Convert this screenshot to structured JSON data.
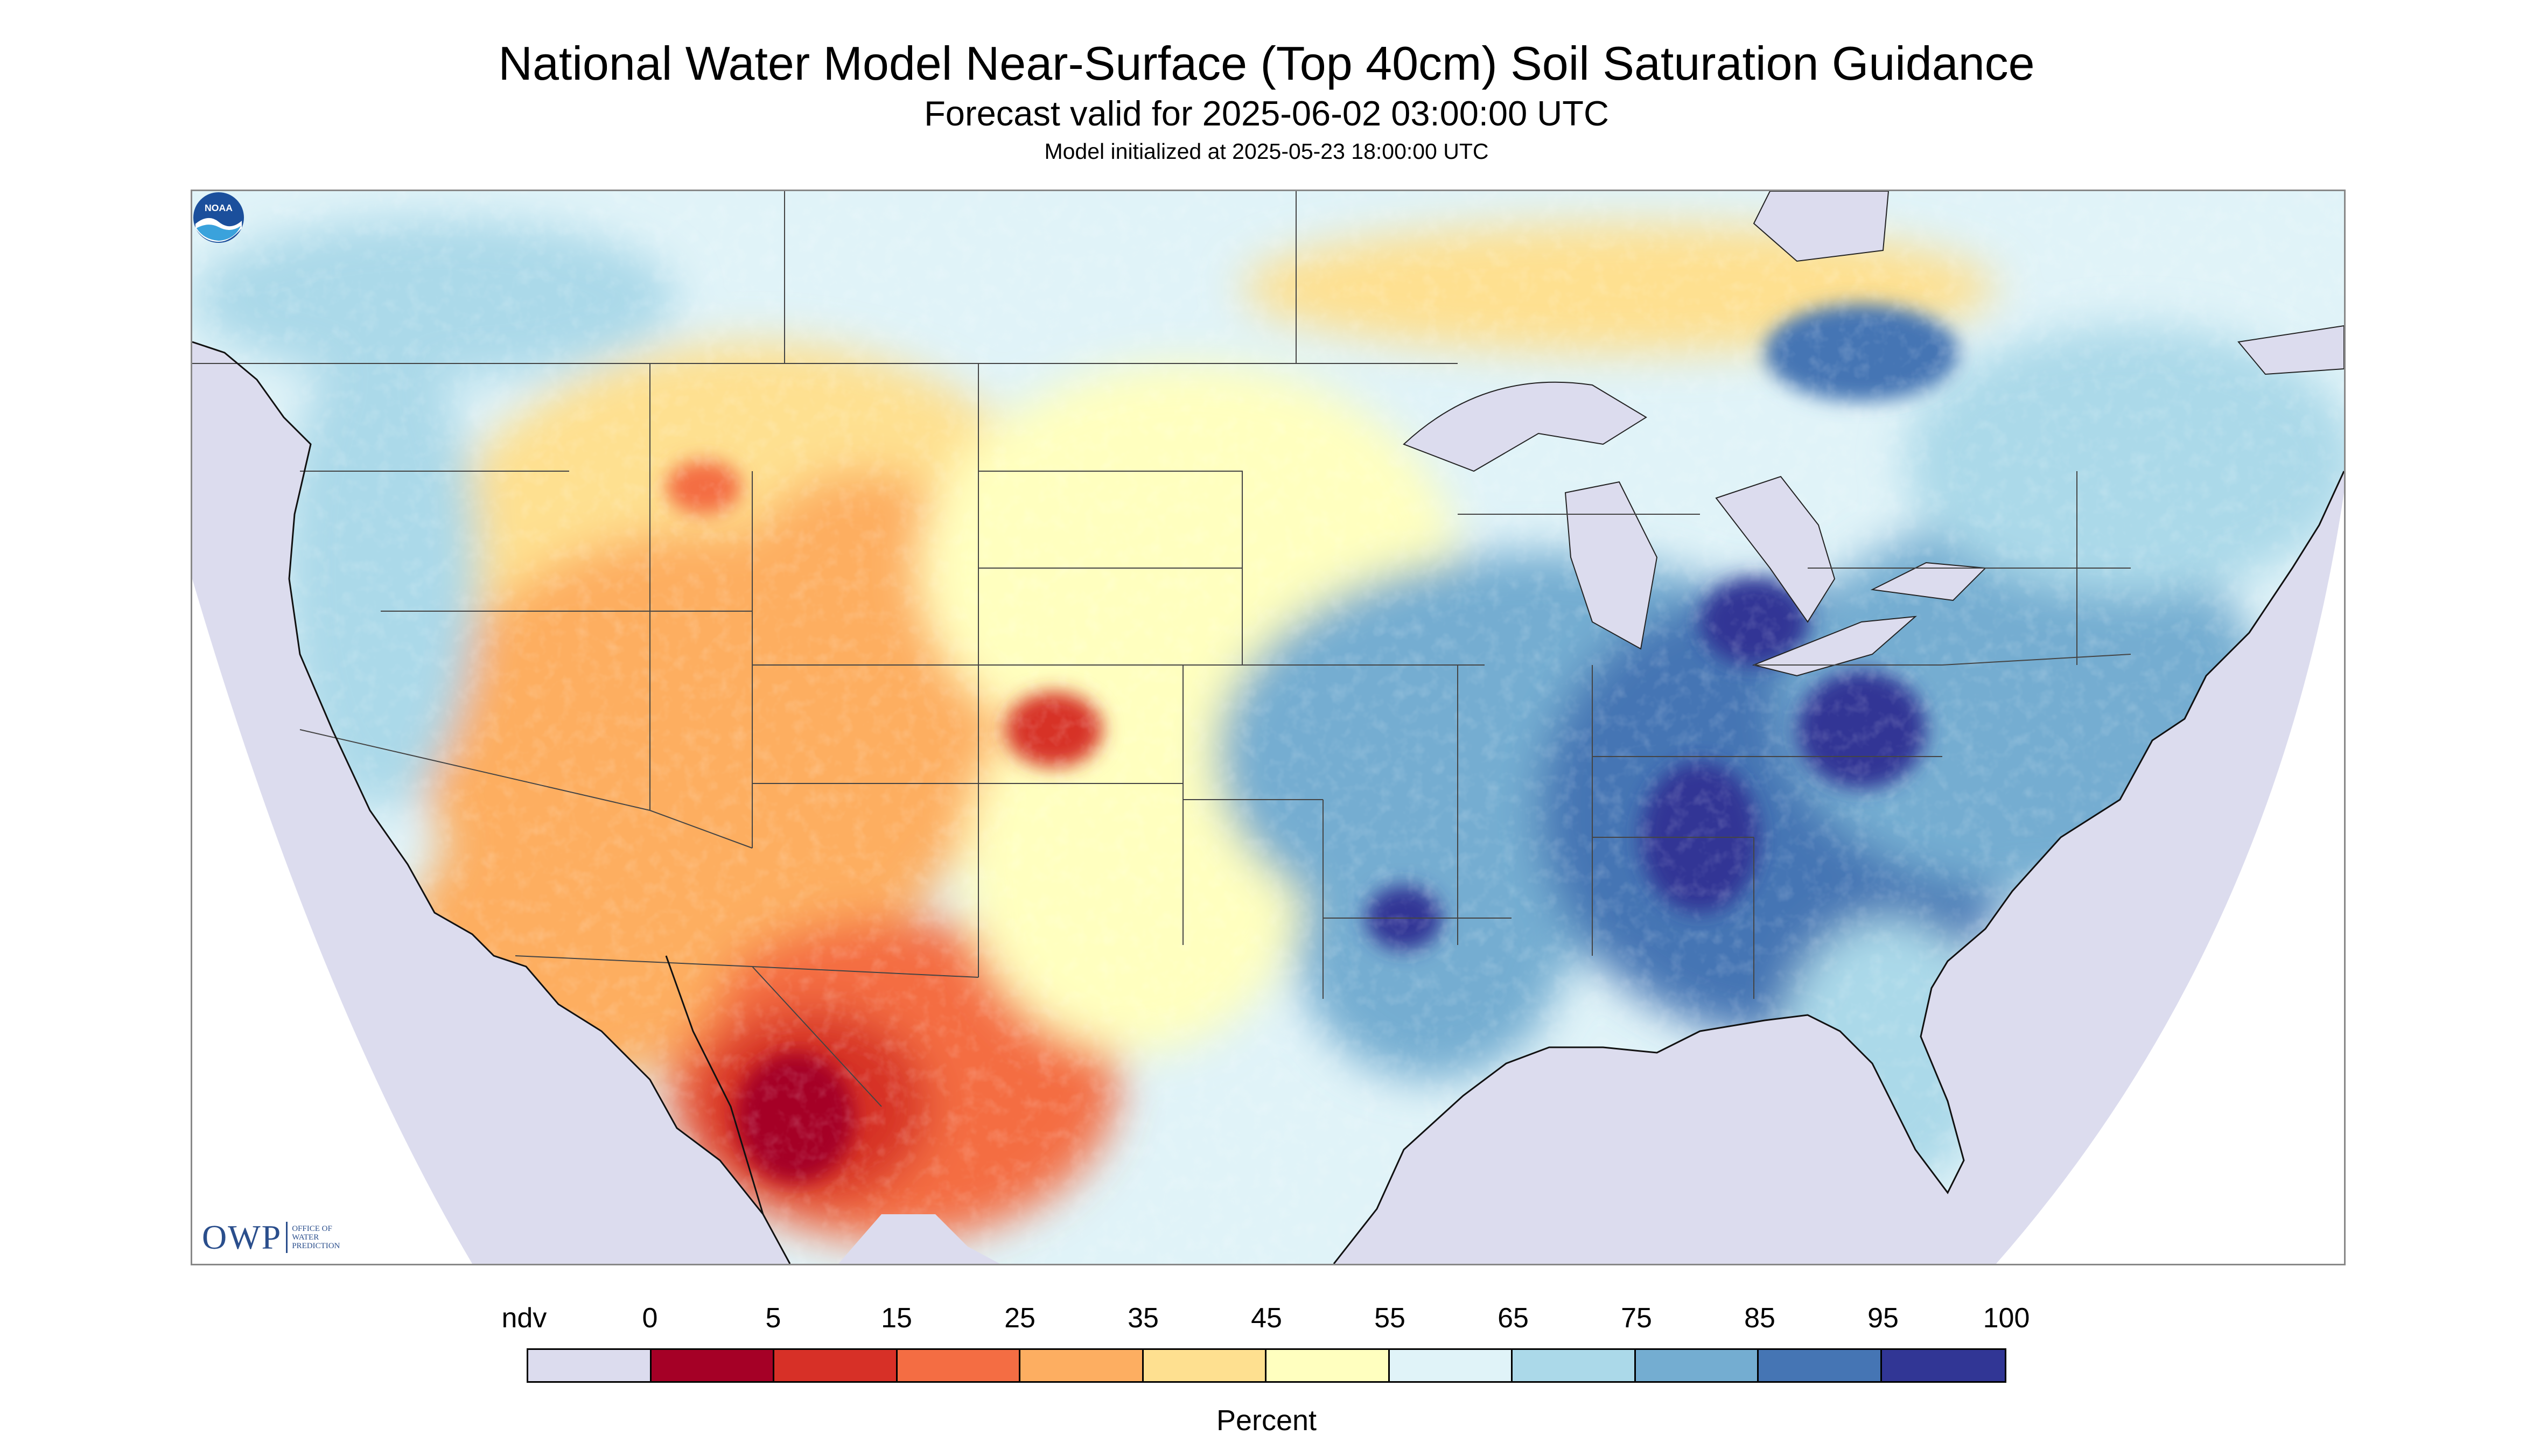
{
  "title": "National Water Model Near-Surface (Top 40cm) Soil Saturation Guidance",
  "subtitle": "Forecast valid for 2025-06-02 03:00:00 UTC",
  "init_line": "Model initialized at 2025-05-23 18:00:00 UTC",
  "logos": {
    "owp_mark": "OWP",
    "owp_name": "OFFICE OF WATER PREDICTION",
    "noaa_mark": "NOAA"
  },
  "legend": {
    "label": "Percent",
    "ndv_label": "ndv",
    "ticks": [
      "0",
      "5",
      "15",
      "25",
      "35",
      "45",
      "55",
      "65",
      "75",
      "85",
      "95",
      "100"
    ],
    "boxes": [
      {
        "name": "ndv",
        "color": "#dcdcee"
      },
      {
        "name": "0-5",
        "color": "#a50026"
      },
      {
        "name": "5-15",
        "color": "#d73027"
      },
      {
        "name": "15-25",
        "color": "#f46d43"
      },
      {
        "name": "25-35",
        "color": "#fdae61"
      },
      {
        "name": "35-45",
        "color": "#fee090"
      },
      {
        "name": "45-55",
        "color": "#ffffbf"
      },
      {
        "name": "55-65",
        "color": "#e0f3f8"
      },
      {
        "name": "65-75",
        "color": "#abd9e9"
      },
      {
        "name": "75-85",
        "color": "#74add1"
      },
      {
        "name": "85-95",
        "color": "#4575b4"
      },
      {
        "name": "95-100",
        "color": "#313695"
      }
    ]
  },
  "colors": {
    "ndv": "#dcdcee",
    "background": "#ffffff",
    "state_lines": "#444444"
  }
}
